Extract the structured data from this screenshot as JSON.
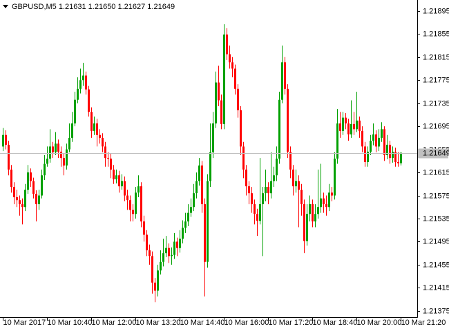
{
  "chart_data": {
    "type": "candlestick",
    "title": "GBPUSD,M5  1.21631 1.21650 1.21627 1.21649",
    "categories": [
      "10 Mar 2017",
      null,
      null,
      null,
      null,
      null,
      null,
      null,
      null,
      null,
      null,
      null,
      null,
      null,
      null,
      null,
      "10 Mar 10:40",
      null,
      null,
      null,
      null,
      null,
      null,
      null,
      null,
      null,
      null,
      null,
      null,
      null,
      null,
      null,
      "10 Mar 12:00",
      null,
      null,
      null,
      null,
      null,
      null,
      null,
      null,
      null,
      null,
      null,
      null,
      null,
      null,
      null,
      "10 Mar 13:20",
      null,
      null,
      null,
      null,
      null,
      null,
      null,
      null,
      null,
      null,
      null,
      null,
      null,
      null,
      null,
      "10 Mar 14:40",
      null,
      null,
      null,
      null,
      null,
      null,
      null,
      null,
      null,
      null,
      null,
      null,
      null,
      null,
      null,
      "10 Mar 16:00",
      null,
      null,
      null,
      null,
      null,
      null,
      null,
      null,
      null,
      null,
      null,
      null,
      null,
      null,
      null,
      "10 Mar 17:20",
      null,
      null,
      null,
      null,
      null,
      null,
      null,
      null,
      null,
      null,
      null,
      null,
      null,
      null,
      null,
      "10 Mar 18:40",
      null,
      null,
      null,
      null,
      null,
      null,
      null,
      null,
      null,
      null,
      null,
      null,
      null,
      null,
      null,
      "10 Mar 20:00",
      null,
      null,
      null,
      null,
      null,
      null,
      null,
      null,
      null,
      null,
      null,
      null,
      null,
      null,
      null,
      "10 Mar 21:20"
    ],
    "open": [
      1.2166,
      1.2168,
      1.21663,
      1.2162,
      1.2159,
      1.21572,
      1.21567,
      1.2156,
      1.21555,
      1.21585,
      1.21615,
      1.216,
      1.21578,
      1.2156,
      1.21575,
      1.2161,
      1.2163,
      1.21639,
      1.2166,
      1.2165,
      1.21665,
      1.21651,
      1.2164,
      1.21627,
      1.21655,
      1.21675,
      1.217,
      1.21741,
      1.2176,
      1.21775,
      1.21783,
      1.21759,
      1.2172,
      1.21687,
      1.217,
      1.2168,
      1.21675,
      1.2166,
      1.2164,
      1.21639,
      1.2162,
      1.21603,
      1.2161,
      1.21591,
      1.216,
      1.21575,
      1.21567,
      1.2155,
      1.21543,
      1.2158,
      1.21591,
      1.2153,
      1.21507,
      1.2148,
      1.2147,
      1.21424,
      1.2141,
      1.21445,
      1.2146,
      1.21475,
      1.21484,
      1.2147,
      1.21472,
      1.21495,
      1.21484,
      1.215,
      1.21519,
      1.2153,
      1.21545,
      1.21555,
      1.21579,
      1.216,
      1.21627,
      1.2156,
      1.2146,
      1.216,
      1.2165,
      1.217,
      1.21771,
      1.2174,
      1.21699,
      1.21854,
      1.2182,
      1.21806,
      1.21795,
      1.2176,
      1.21723,
      1.2166,
      1.2162,
      1.21591,
      1.21579,
      1.2156,
      1.21543,
      1.21531,
      1.2156,
      1.21579,
      1.2159,
      1.21579,
      1.216,
      1.2161,
      1.21639,
      1.21741,
      1.21806,
      1.2176,
      1.21651,
      1.2162,
      1.21591,
      1.216,
      1.21585,
      1.2156,
      1.21496,
      1.21543,
      1.2156,
      1.2153,
      1.21543,
      1.21555,
      1.2157,
      1.2156,
      1.21555,
      1.2158,
      1.21575,
      1.21639,
      1.217,
      1.21687,
      1.2171,
      1.217,
      1.21681,
      1.21699,
      1.2169,
      1.21705,
      1.21687,
      1.2166,
      1.21633,
      1.21651,
      1.2167,
      1.21681,
      1.2166,
      1.21675,
      1.2169,
      1.21645,
      1.21663,
      1.2164,
      1.21651,
      1.21633,
      1.21631
    ],
    "high": [
      1.21692,
      1.21688,
      1.2167,
      1.21628,
      1.21598,
      1.21585,
      1.21575,
      1.2157,
      1.21595,
      1.21628,
      1.21622,
      1.21606,
      1.21584,
      1.21585,
      1.2162,
      1.21645,
      1.2166,
      1.2169,
      1.21668,
      1.21685,
      1.21672,
      1.2166,
      1.21648,
      1.21665,
      1.217,
      1.2172,
      1.21755,
      1.2178,
      1.21795,
      1.21805,
      1.2179,
      1.21765,
      1.21728,
      1.21712,
      1.21708,
      1.2169,
      1.21683,
      1.21668,
      1.2165,
      1.21648,
      1.21628,
      1.2162,
      1.21618,
      1.21612,
      1.21608,
      1.21585,
      1.21575,
      1.2156,
      1.2159,
      1.2161,
      1.21598,
      1.2154,
      1.21515,
      1.2149,
      1.21478,
      1.21432,
      1.21455,
      1.2148,
      1.215,
      1.21505,
      1.21492,
      1.21485,
      1.2151,
      1.21502,
      1.21515,
      1.21532,
      1.21545,
      1.2156,
      1.2157,
      1.21595,
      1.21615,
      1.2164,
      1.21635,
      1.2157,
      1.21612,
      1.217,
      1.2172,
      1.2179,
      1.218,
      1.2175,
      1.21872,
      1.21865,
      1.21835,
      1.21815,
      1.21802,
      1.21768,
      1.2173,
      1.21668,
      1.21628,
      1.216,
      1.2159,
      1.21568,
      1.21552,
      1.2164,
      1.2159,
      1.2162,
      1.21598,
      1.2165,
      1.21625,
      1.2166,
      1.21755,
      1.21835,
      1.21815,
      1.21768,
      1.2166,
      1.21628,
      1.2162,
      1.2161,
      1.21595,
      1.21568,
      1.2156,
      1.21575,
      1.21568,
      1.2156,
      1.2162,
      1.2163,
      1.2158,
      1.21575,
      1.21595,
      1.2159,
      1.2165,
      1.21725,
      1.2172,
      1.2172,
      1.21718,
      1.21708,
      1.2174,
      1.2172,
      1.21755,
      1.21712,
      1.21695,
      1.21668,
      1.2166,
      1.2168,
      1.217,
      1.21688,
      1.2169,
      1.21702,
      1.21695,
      1.2168,
      1.2167,
      1.2166,
      1.21658,
      1.2165,
      1.2165
    ],
    "low": [
      1.21652,
      1.21655,
      1.2161,
      1.2158,
      1.2156,
      1.21555,
      1.2154,
      1.21525,
      1.21548,
      1.21578,
      1.2159,
      1.2157,
      1.2153,
      1.2155,
      1.2157,
      1.21602,
      1.21625,
      1.21632,
      1.2164,
      1.21645,
      1.2164,
      1.21625,
      1.2161,
      1.2162,
      1.2165,
      1.21668,
      1.21695,
      1.21735,
      1.21752,
      1.21765,
      1.2175,
      1.21712,
      1.21675,
      1.2168,
      1.2166,
      1.21665,
      1.2165,
      1.21625,
      1.21625,
      1.21605,
      1.21595,
      1.21596,
      1.2158,
      1.21585,
      1.21565,
      1.2155,
      1.2153,
      1.2153,
      1.21535,
      1.21572,
      1.2152,
      1.21495,
      1.2147,
      1.21455,
      1.21405,
      1.2139,
      1.214,
      1.21438,
      1.21452,
      1.21468,
      1.21458,
      1.21455,
      1.21465,
      1.2147,
      1.21476,
      1.21492,
      1.2151,
      1.21522,
      1.21538,
      1.21548,
      1.2157,
      1.21592,
      1.21545,
      1.214,
      1.2145,
      1.2159,
      1.2164,
      1.21692,
      1.2173,
      1.2169,
      1.2169,
      1.2181,
      1.21795,
      1.2178,
      1.2175,
      1.2171,
      1.21645,
      1.21605,
      1.21575,
      1.2156,
      1.21545,
      1.21525,
      1.21505,
      1.21525,
      1.2147,
      1.21565,
      1.2156,
      1.2157,
      1.2159,
      1.216,
      1.2163,
      1.21735,
      1.2175,
      1.2164,
      1.21605,
      1.21575,
      1.2158,
      1.2152,
      1.2154,
      1.21475,
      1.21488,
      1.2153,
      1.2152,
      1.2152,
      1.21535,
      1.21545,
      1.21545,
      1.2154,
      1.21548,
      1.21565,
      1.21568,
      1.2163,
      1.21675,
      1.2168,
      1.2169,
      1.2167,
      1.21675,
      1.2168,
      1.21685,
      1.21675,
      1.2165,
      1.21625,
      1.21625,
      1.21645,
      1.21662,
      1.2165,
      1.21652,
      1.21668,
      1.21635,
      1.21638,
      1.2163,
      1.21632,
      1.21625,
      1.21625,
      1.21627
    ],
    "close": [
      1.2168,
      1.21663,
      1.2162,
      1.2159,
      1.21572,
      1.21567,
      1.2156,
      1.21555,
      1.21585,
      1.21615,
      1.216,
      1.21578,
      1.2156,
      1.21575,
      1.2161,
      1.2163,
      1.21639,
      1.2166,
      1.2165,
      1.21665,
      1.21651,
      1.2164,
      1.21627,
      1.21655,
      1.21675,
      1.217,
      1.21741,
      1.2176,
      1.21775,
      1.21783,
      1.21759,
      1.2172,
      1.21687,
      1.217,
      1.2168,
      1.21675,
      1.2166,
      1.2164,
      1.21639,
      1.2162,
      1.21603,
      1.2161,
      1.21591,
      1.216,
      1.21575,
      1.21567,
      1.2155,
      1.21543,
      1.2158,
      1.21591,
      1.2153,
      1.21507,
      1.2148,
      1.2147,
      1.21424,
      1.2141,
      1.21445,
      1.2146,
      1.21475,
      1.21484,
      1.2147,
      1.21472,
      1.21495,
      1.21484,
      1.215,
      1.21519,
      1.2153,
      1.21545,
      1.21555,
      1.21579,
      1.216,
      1.21627,
      1.2156,
      1.2146,
      1.216,
      1.2165,
      1.217,
      1.21771,
      1.2174,
      1.21699,
      1.21854,
      1.2182,
      1.21806,
      1.21795,
      1.2176,
      1.21723,
      1.2166,
      1.2162,
      1.21591,
      1.21579,
      1.2156,
      1.21543,
      1.21531,
      1.2156,
      1.21579,
      1.2159,
      1.21579,
      1.216,
      1.2161,
      1.21639,
      1.21741,
      1.21806,
      1.2176,
      1.21651,
      1.2162,
      1.21591,
      1.216,
      1.21585,
      1.2156,
      1.21496,
      1.21543,
      1.2156,
      1.2153,
      1.21543,
      1.21555,
      1.2157,
      1.2156,
      1.21555,
      1.2158,
      1.21575,
      1.21639,
      1.217,
      1.21687,
      1.2171,
      1.217,
      1.21681,
      1.21699,
      1.2169,
      1.21705,
      1.21687,
      1.2166,
      1.21633,
      1.21651,
      1.2167,
      1.21681,
      1.2166,
      1.21675,
      1.2169,
      1.21645,
      1.21663,
      1.2164,
      1.21651,
      1.21633,
      1.21631,
      1.21649
    ],
    "up_color": "#00a000",
    "down_color": "#ff0000",
    "ylim": [
      1.21364,
      1.21914
    ],
    "yticks": [
      1.21895,
      1.21855,
      1.21815,
      1.21775,
      1.21735,
      1.21695,
      1.21655,
      1.21615,
      1.21575,
      1.21535,
      1.21495,
      1.21455,
      1.21415,
      1.21375
    ],
    "current_price": 1.21649,
    "price_line_color": "#c0c0c0",
    "grid": false
  }
}
